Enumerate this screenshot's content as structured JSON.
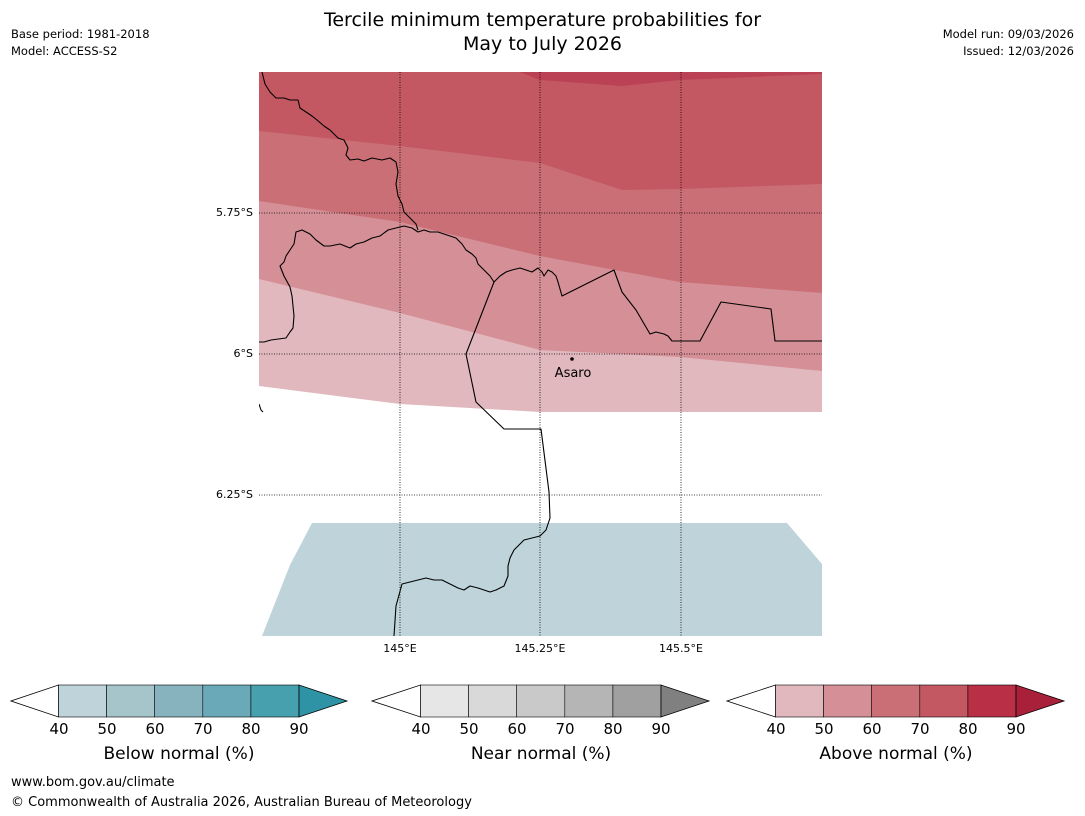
{
  "title_line1": "Tercile minimum temperature probabilities for",
  "title_line2": "May to July 2026",
  "meta": {
    "base_period": "Base period: 1981-2018",
    "model": "Model: ACCESS-S2",
    "model_run": "Model run: 09/03/2026",
    "issued": "Issued: 12/03/2026"
  },
  "map": {
    "lat_labels": [
      "5.75°S",
      "6°S",
      "6.25°S"
    ],
    "lon_labels": [
      "145°E",
      "145.25°E",
      "145.5°E"
    ],
    "place_label": "Asaro"
  },
  "colorbars": [
    {
      "title": "Below normal (%)",
      "ticks": [
        "40",
        "50",
        "60",
        "70",
        "80",
        "90"
      ],
      "colors": [
        "#ffffff",
        "#bfd4da",
        "#a5c5cb",
        "#87b3bf",
        "#6aa9b8",
        "#47a0ae",
        "#2e93a4"
      ]
    },
    {
      "title": "Near normal (%)",
      "ticks": [
        "40",
        "50",
        "60",
        "70",
        "80",
        "90"
      ],
      "colors": [
        "#ffffff",
        "#e6e6e6",
        "#d9d9d9",
        "#c9c9c9",
        "#b5b5b5",
        "#a0a0a0",
        "#808080"
      ]
    },
    {
      "title": "Above normal (%)",
      "ticks": [
        "40",
        "50",
        "60",
        "70",
        "80",
        "90"
      ],
      "colors": [
        "#ffffff",
        "#e1b8bd",
        "#d58f96",
        "#ca6f76",
        "#c35862",
        "#b92f45",
        "#a8203a"
      ]
    }
  ],
  "footer": {
    "url": "www.bom.gov.au/climate",
    "copyright": "© Commonwealth of Australia 2026, Australian Bureau of Meteorology"
  }
}
